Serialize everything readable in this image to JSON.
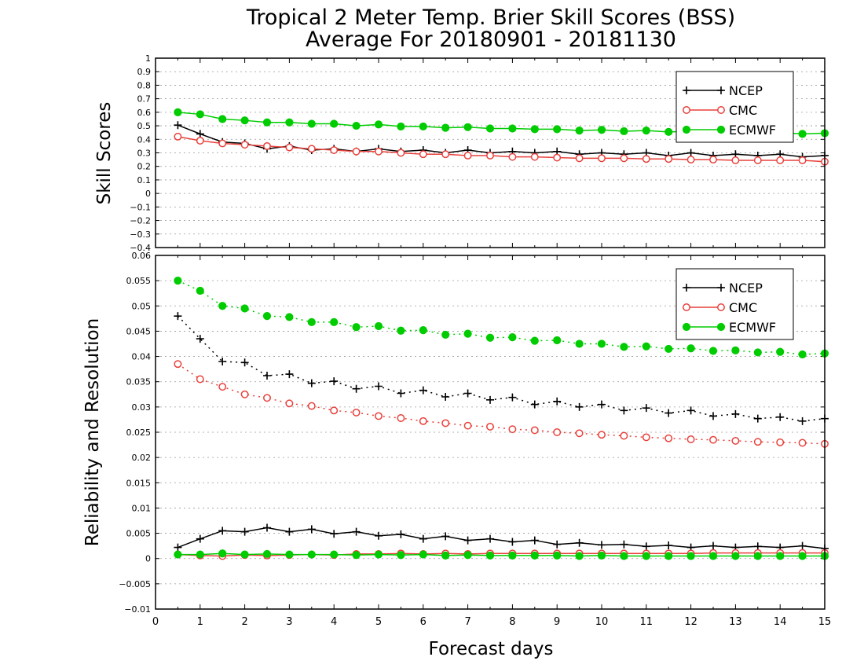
{
  "chart_data": {
    "type": "line",
    "title": "Tropical 2 Meter Temp. Brier Skill Scores (BSS)",
    "subtitle": "Average For 20180901 - 20181130",
    "xlabel": "Forecast days",
    "xlim": [
      0,
      15
    ],
    "xticks": [
      "0",
      "1",
      "2",
      "3",
      "4",
      "5",
      "6",
      "7",
      "8",
      "9",
      "10",
      "11",
      "12",
      "13",
      "14",
      "15"
    ],
    "legend_position": "top-right",
    "colors": {
      "NCEP": "#000000",
      "CMC": "#e8413c",
      "ECMWF": "#00cc00"
    },
    "x": [
      0.5,
      1,
      1.5,
      2,
      2.5,
      3,
      3.5,
      4,
      4.5,
      5,
      5.5,
      6,
      6.5,
      7,
      7.5,
      8,
      8.5,
      9,
      9.5,
      10,
      10.5,
      11,
      11.5,
      12,
      12.5,
      13,
      13.5,
      14,
      14.5,
      15
    ],
    "panels": [
      {
        "ylabel": "Skill Scores",
        "ylim": [
          -0.4,
          1
        ],
        "yticks": [
          "1",
          "0.9",
          "0.8",
          "0.7",
          "0.6",
          "0.5",
          "0.4",
          "0.3",
          "0.2",
          "0.1",
          "0",
          "−0.1",
          "−0.2",
          "−0.3",
          "−0.4"
        ],
        "grid": true,
        "legend": [
          "NCEP",
          "CMC",
          "ECMWF"
        ],
        "series": [
          {
            "name": "NCEP",
            "style": "solid",
            "marker": "plus",
            "values": [
              0.505,
              0.44,
              0.38,
              0.37,
              0.33,
              0.35,
              0.32,
              0.33,
              0.31,
              0.33,
              0.31,
              0.32,
              0.3,
              0.32,
              0.3,
              0.31,
              0.3,
              0.31,
              0.29,
              0.3,
              0.29,
              0.3,
              0.28,
              0.3,
              0.28,
              0.29,
              0.28,
              0.29,
              0.27,
              0.28
            ]
          },
          {
            "name": "CMC",
            "style": "solid",
            "marker": "open-circle",
            "values": [
              0.42,
              0.39,
              0.37,
              0.36,
              0.35,
              0.34,
              0.33,
              0.32,
              0.31,
              0.31,
              0.3,
              0.29,
              0.29,
              0.28,
              0.28,
              0.27,
              0.27,
              0.265,
              0.26,
              0.26,
              0.26,
              0.255,
              0.255,
              0.25,
              0.25,
              0.245,
              0.245,
              0.245,
              0.245,
              0.235
            ]
          },
          {
            "name": "ECMWF",
            "style": "solid",
            "marker": "filled-circle",
            "values": [
              0.6,
              0.585,
              0.55,
              0.54,
              0.525,
              0.525,
              0.515,
              0.515,
              0.5,
              0.51,
              0.495,
              0.495,
              0.485,
              0.49,
              0.48,
              0.48,
              0.475,
              0.475,
              0.465,
              0.47,
              0.46,
              0.465,
              0.455,
              0.46,
              0.45,
              0.455,
              0.445,
              0.45,
              0.44,
              0.445
            ]
          }
        ]
      },
      {
        "ylabel": "Reliability and Resolution",
        "ylim": [
          -0.01,
          0.06
        ],
        "yticks": [
          "0.06",
          "0.055",
          "0.05",
          "0.045",
          "0.04",
          "0.035",
          "0.03",
          "0.025",
          "0.02",
          "0.015",
          "0.01",
          "0.005",
          "0",
          "−0.005",
          "−0.01"
        ],
        "grid": true,
        "legend": [
          "NCEP",
          "CMC",
          "ECMWF"
        ],
        "series": [
          {
            "name": "NCEP",
            "group": "resolution",
            "style": "dotted",
            "marker": "plus",
            "values": [
              0.048,
              0.0435,
              0.039,
              0.0388,
              0.0362,
              0.0365,
              0.0347,
              0.0351,
              0.0336,
              0.0341,
              0.0327,
              0.0333,
              0.032,
              0.0327,
              0.0314,
              0.0319,
              0.0305,
              0.0311,
              0.03,
              0.0305,
              0.0293,
              0.0298,
              0.0288,
              0.0293,
              0.0282,
              0.0286,
              0.0277,
              0.028,
              0.0272,
              0.0277
            ]
          },
          {
            "name": "CMC",
            "group": "resolution",
            "style": "dotted",
            "marker": "open-circle",
            "values": [
              0.0385,
              0.0355,
              0.034,
              0.0325,
              0.0318,
              0.0307,
              0.0302,
              0.0293,
              0.0289,
              0.0282,
              0.0278,
              0.0272,
              0.0268,
              0.0263,
              0.0261,
              0.0256,
              0.0254,
              0.025,
              0.0248,
              0.0245,
              0.0243,
              0.024,
              0.0238,
              0.0236,
              0.0235,
              0.0233,
              0.0231,
              0.023,
              0.0229,
              0.0227
            ]
          },
          {
            "name": "ECMWF",
            "group": "resolution",
            "style": "dotted",
            "marker": "filled-circle",
            "values": [
              0.055,
              0.053,
              0.05,
              0.0495,
              0.048,
              0.0478,
              0.0468,
              0.0468,
              0.0458,
              0.046,
              0.0451,
              0.0452,
              0.0443,
              0.0445,
              0.0437,
              0.0438,
              0.0431,
              0.0432,
              0.0425,
              0.0425,
              0.0419,
              0.042,
              0.0415,
              0.0416,
              0.0411,
              0.0412,
              0.0408,
              0.0409,
              0.0404,
              0.0406
            ]
          },
          {
            "name": "NCEP",
            "group": "reliability",
            "style": "solid",
            "marker": "plus",
            "values": [
              0.0022,
              0.0039,
              0.0055,
              0.0053,
              0.0061,
              0.0053,
              0.0058,
              0.0049,
              0.0053,
              0.0045,
              0.0048,
              0.0039,
              0.0044,
              0.0036,
              0.0039,
              0.0033,
              0.0036,
              0.0028,
              0.0031,
              0.0027,
              0.0028,
              0.0024,
              0.0026,
              0.0022,
              0.0025,
              0.0022,
              0.0024,
              0.0022,
              0.0025,
              0.002
            ]
          },
          {
            "name": "CMC",
            "group": "reliability",
            "style": "solid",
            "marker": "open-circle",
            "values": [
              0.0008,
              0.0006,
              0.0005,
              0.0007,
              0.0006,
              0.0007,
              0.0008,
              0.0007,
              0.0009,
              0.0009,
              0.001,
              0.0009,
              0.001,
              0.0009,
              0.001,
              0.001,
              0.001,
              0.001,
              0.001,
              0.001,
              0.001,
              0.001,
              0.001,
              0.001,
              0.0011,
              0.0011,
              0.0011,
              0.0011,
              0.0011,
              0.0011
            ]
          },
          {
            "name": "ECMWF",
            "group": "reliability",
            "style": "solid",
            "marker": "filled-circle",
            "values": [
              0.0008,
              0.0008,
              0.001,
              0.0008,
              0.0009,
              0.0008,
              0.0008,
              0.0008,
              0.0007,
              0.0008,
              0.0007,
              0.0008,
              0.0006,
              0.0007,
              0.0006,
              0.0006,
              0.0006,
              0.0006,
              0.0005,
              0.0006,
              0.0005,
              0.0005,
              0.0005,
              0.0005,
              0.0005,
              0.0005,
              0.0005,
              0.0005,
              0.0005,
              0.0005
            ]
          }
        ]
      }
    ]
  }
}
